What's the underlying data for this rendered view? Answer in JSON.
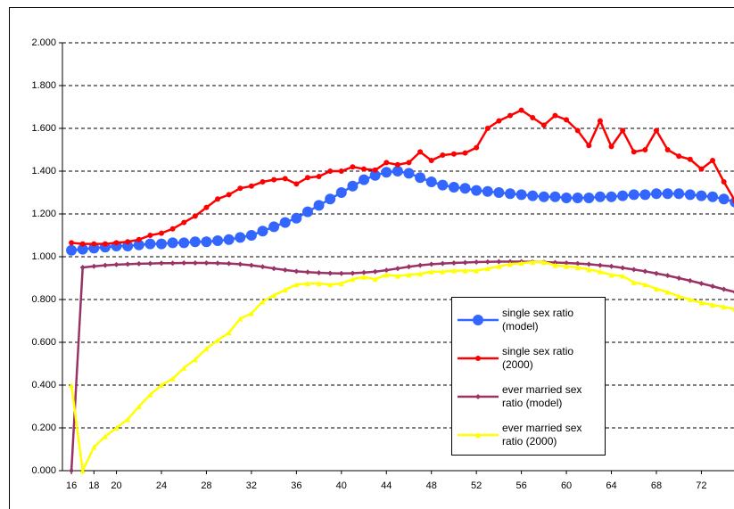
{
  "chart_data": {
    "type": "line",
    "x": [
      16,
      17,
      18,
      19,
      20,
      21,
      22,
      23,
      24,
      25,
      26,
      27,
      28,
      29,
      30,
      31,
      32,
      33,
      34,
      35,
      36,
      37,
      38,
      39,
      40,
      41,
      42,
      43,
      44,
      45,
      46,
      47,
      48,
      49,
      50,
      51,
      52,
      53,
      54,
      55,
      56,
      57,
      58,
      59,
      60,
      61,
      62,
      63,
      64,
      65,
      66,
      67,
      68,
      69,
      70,
      71,
      72,
      73,
      74,
      75
    ],
    "xlim": [
      15.2,
      74.9
    ],
    "xticks": [
      16,
      18,
      20,
      24,
      28,
      32,
      36,
      40,
      44,
      48,
      52,
      56,
      60,
      64,
      68,
      72
    ],
    "ylim": [
      0,
      2
    ],
    "yticks": [
      {
        "value": 0,
        "label": "0.000"
      },
      {
        "value": 0.2,
        "label": "0.200"
      },
      {
        "value": 0.4,
        "label": "0.400"
      },
      {
        "value": 0.6,
        "label": "0.600"
      },
      {
        "value": 0.8,
        "label": "0.800"
      },
      {
        "value": 1,
        "label": "1.000"
      },
      {
        "value": 1.2,
        "label": "1.200"
      },
      {
        "value": 1.4,
        "label": "1.400"
      },
      {
        "value": 1.6,
        "label": "1.600"
      },
      {
        "value": 1.8,
        "label": "1.800"
      },
      {
        "value": 2,
        "label": "2.000"
      }
    ],
    "grid": true,
    "series": [
      {
        "name": "single sex ratio (model)",
        "color": "#3366ff",
        "marker": "circle",
        "marker_size": 6,
        "values": [
          1.03,
          1.035,
          1.04,
          1.045,
          1.05,
          1.05,
          1.055,
          1.06,
          1.06,
          1.065,
          1.065,
          1.07,
          1.07,
          1.075,
          1.08,
          1.09,
          1.1,
          1.12,
          1.14,
          1.16,
          1.18,
          1.21,
          1.24,
          1.27,
          1.3,
          1.33,
          1.36,
          1.38,
          1.395,
          1.4,
          1.39,
          1.37,
          1.35,
          1.335,
          1.325,
          1.32,
          1.31,
          1.305,
          1.3,
          1.295,
          1.29,
          1.285,
          1.28,
          1.28,
          1.275,
          1.275,
          1.275,
          1.28,
          1.28,
          1.285,
          1.29,
          1.29,
          1.295,
          1.295,
          1.295,
          1.29,
          1.285,
          1.28,
          1.27,
          1.255
        ]
      },
      {
        "name": "single sex ratio (2000)",
        "color": "#ff0000",
        "marker": "circle",
        "marker_size": 3,
        "values": [
          1.065,
          1.06,
          1.06,
          1.06,
          1.065,
          1.07,
          1.08,
          1.1,
          1.11,
          1.13,
          1.16,
          1.19,
          1.23,
          1.27,
          1.29,
          1.32,
          1.33,
          1.35,
          1.36,
          1.365,
          1.34,
          1.37,
          1.375,
          1.4,
          1.4,
          1.42,
          1.41,
          1.405,
          1.44,
          1.43,
          1.44,
          1.49,
          1.45,
          1.475,
          1.48,
          1.485,
          1.51,
          1.6,
          1.635,
          1.66,
          1.685,
          1.65,
          1.615,
          1.66,
          1.64,
          1.59,
          1.52,
          1.635,
          1.515,
          1.59,
          1.49,
          1.5,
          1.59,
          1.5,
          1.47,
          1.455,
          1.41,
          1.45,
          1.35,
          1.26
        ]
      },
      {
        "name": "ever married sex ratio (model)",
        "color": "#993366",
        "marker": "diamond",
        "marker_size": 3,
        "values": [
          0,
          0.95,
          0.955,
          0.96,
          0.963,
          0.965,
          0.967,
          0.968,
          0.97,
          0.97,
          0.971,
          0.971,
          0.971,
          0.97,
          0.968,
          0.965,
          0.96,
          0.953,
          0.945,
          0.938,
          0.932,
          0.928,
          0.925,
          0.923,
          0.922,
          0.923,
          0.926,
          0.93,
          0.937,
          0.945,
          0.953,
          0.96,
          0.965,
          0.968,
          0.971,
          0.973,
          0.975,
          0.976,
          0.977,
          0.977,
          0.977,
          0.976,
          0.975,
          0.973,
          0.971,
          0.968,
          0.965,
          0.96,
          0.955,
          0.948,
          0.94,
          0.932,
          0.922,
          0.912,
          0.9,
          0.888,
          0.875,
          0.862,
          0.848,
          0.835
        ]
      },
      {
        "name": "ever married sex ratio (2000)",
        "color": "#ffff00",
        "marker": "triangle",
        "marker_size": 3,
        "values": [
          0.4,
          0,
          0.11,
          0.16,
          0.2,
          0.24,
          0.3,
          0.355,
          0.4,
          0.43,
          0.48,
          0.52,
          0.57,
          0.61,
          0.645,
          0.71,
          0.735,
          0.79,
          0.82,
          0.845,
          0.87,
          0.875,
          0.875,
          0.87,
          0.875,
          0.895,
          0.905,
          0.895,
          0.915,
          0.91,
          0.915,
          0.92,
          0.93,
          0.93,
          0.935,
          0.935,
          0.935,
          0.945,
          0.955,
          0.965,
          0.97,
          0.975,
          0.975,
          0.96,
          0.955,
          0.95,
          0.94,
          0.93,
          0.915,
          0.91,
          0.88,
          0.87,
          0.85,
          0.835,
          0.815,
          0.8,
          0.785,
          0.775,
          0.765,
          0.755
        ]
      }
    ]
  }
}
